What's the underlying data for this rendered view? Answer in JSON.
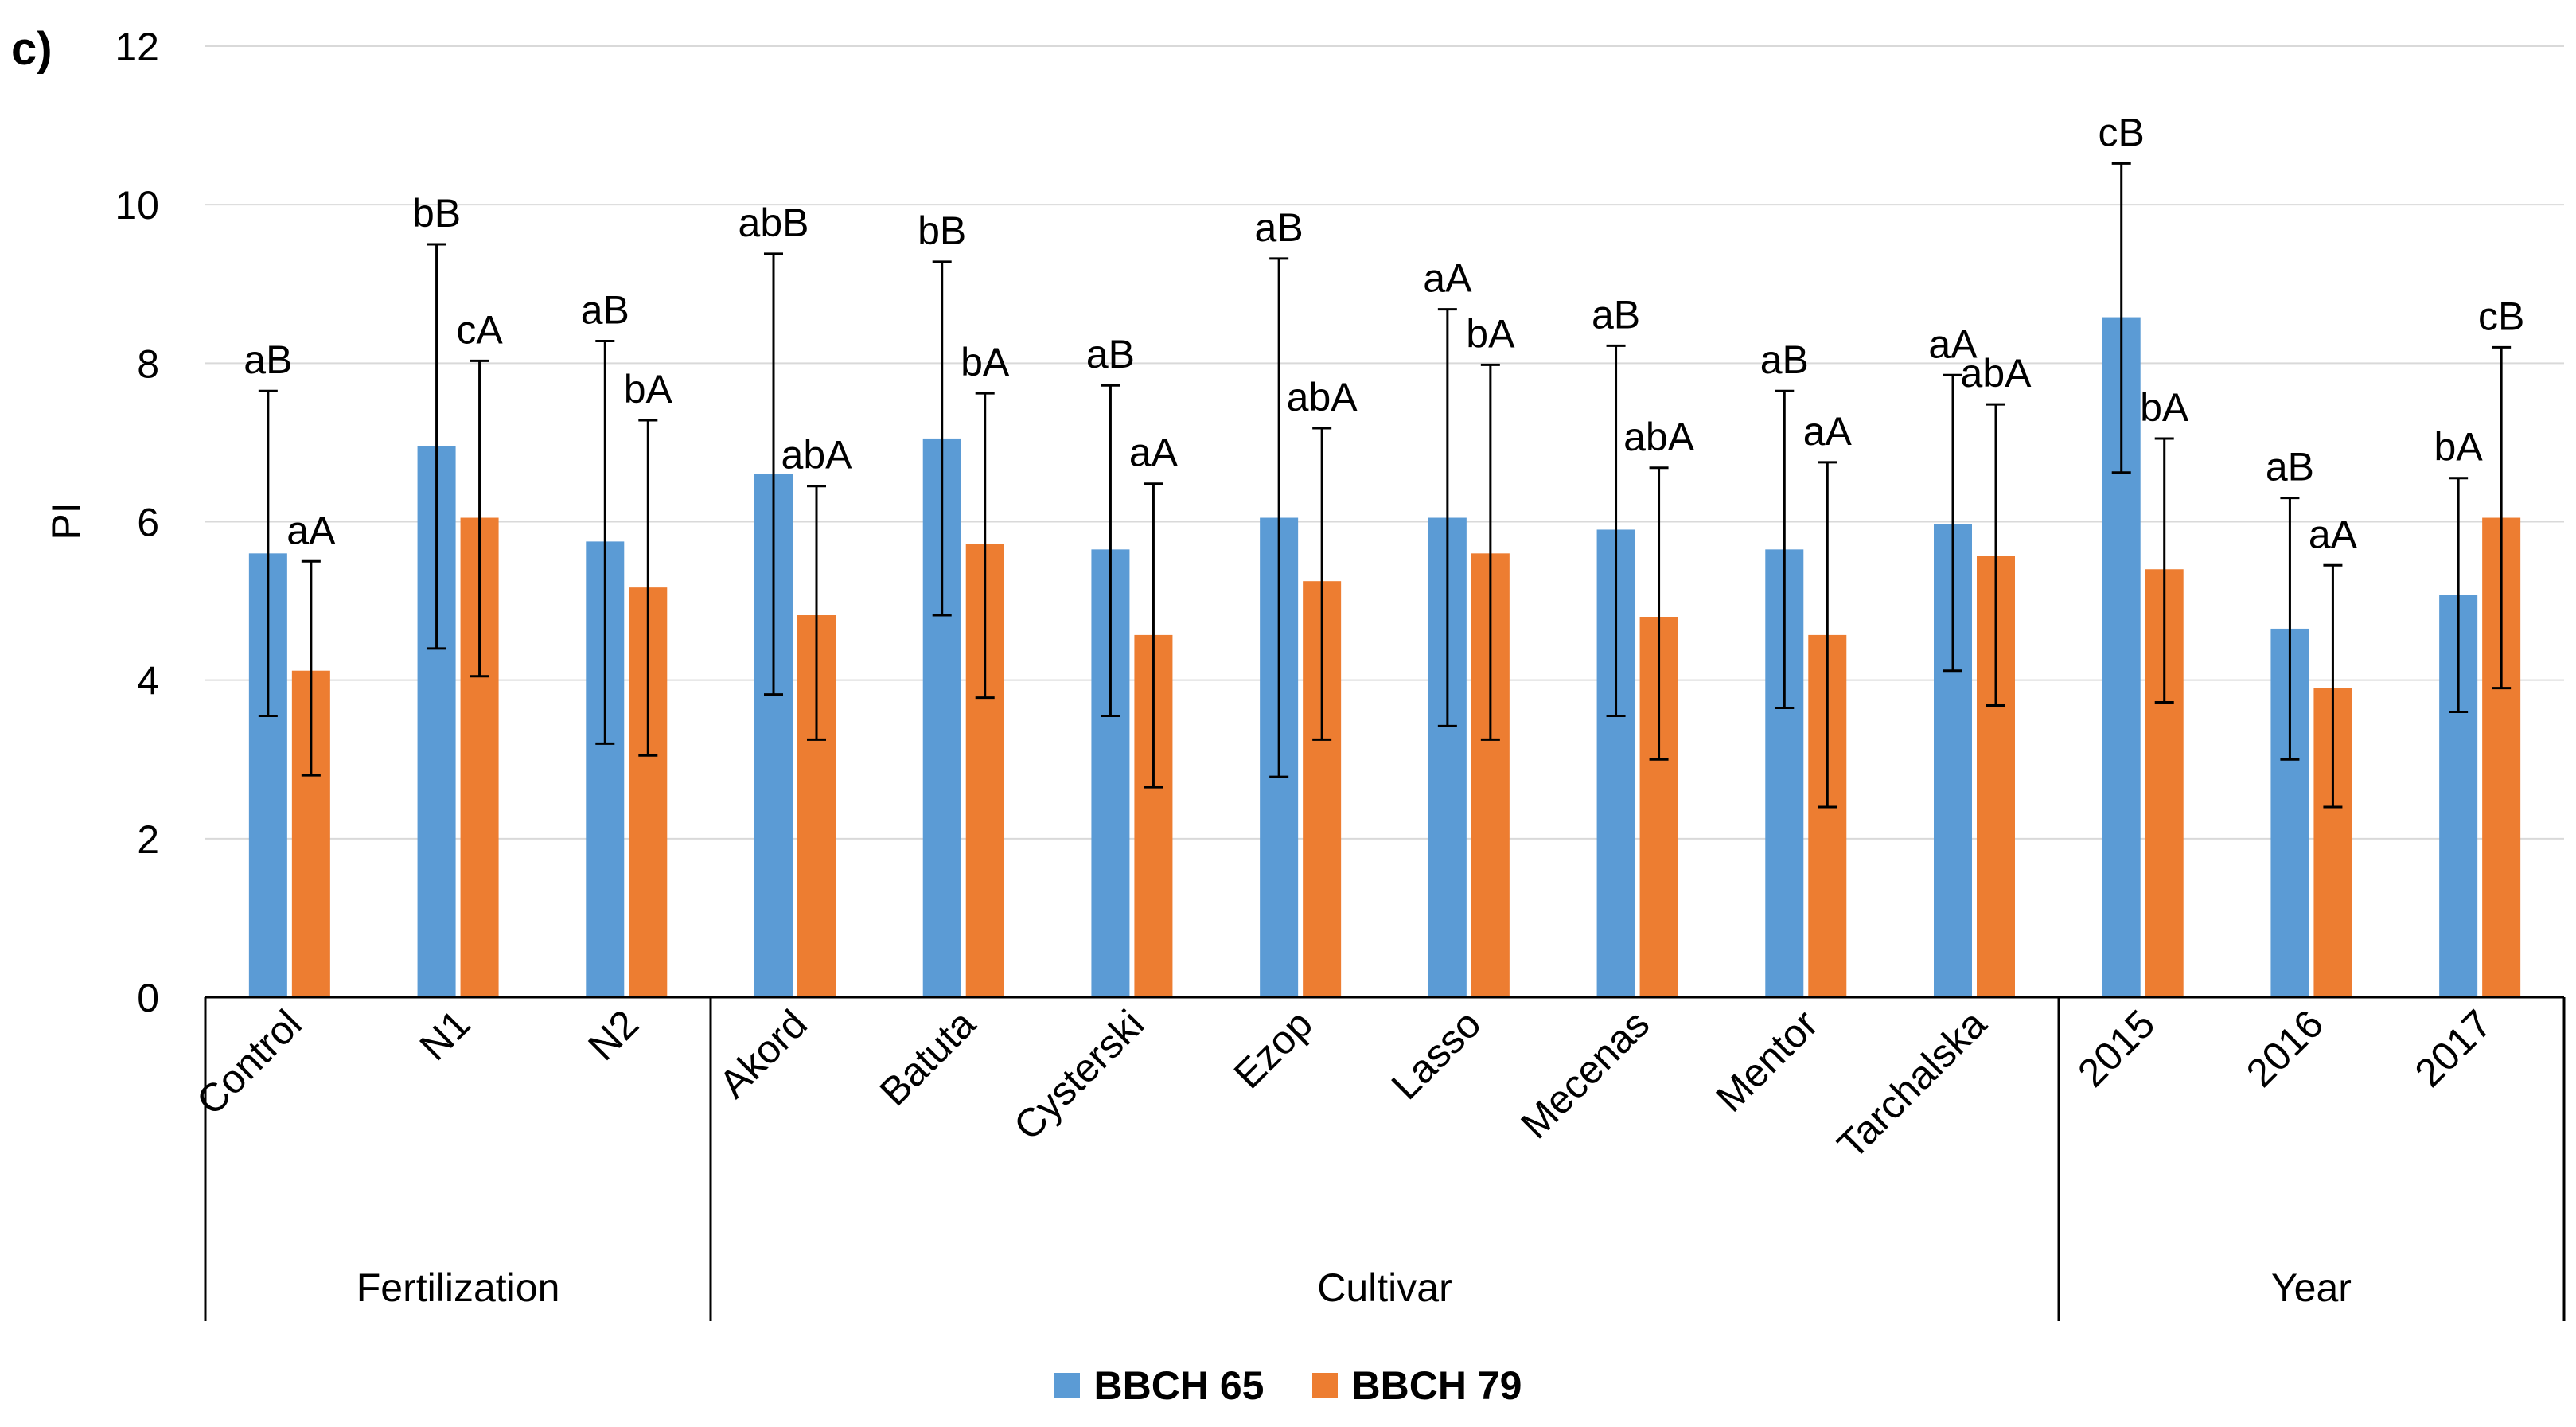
{
  "panel_label": "c)",
  "colors": {
    "bbch65": "#5b9bd5",
    "bbch79": "#ed7d31"
  },
  "legend": [
    {
      "label": "BBCH 65",
      "color": "#5b9bd5"
    },
    {
      "label": "BBCH 79",
      "color": "#ed7d31"
    }
  ],
  "chart_data": {
    "type": "bar",
    "title": "",
    "xlabel": "",
    "ylabel": "PI",
    "ylim": [
      0,
      12
    ],
    "yticks": [
      0,
      2,
      4,
      6,
      8,
      10,
      12
    ],
    "grid": true,
    "categories": [
      "Control",
      "N1",
      "N2",
      "Akord",
      "Batuta",
      "Cysterski",
      "Ezop",
      "Lasso",
      "Mecenas",
      "Mentor",
      "Tarchalska",
      "2015",
      "2016",
      "2017"
    ],
    "groups": [
      {
        "label": "Fertilization",
        "start": 0,
        "end": 2
      },
      {
        "label": "Cultivar",
        "start": 3,
        "end": 10
      },
      {
        "label": "Year",
        "start": 11,
        "end": 13
      }
    ],
    "series": [
      {
        "name": "BBCH 65",
        "values": [
          5.6,
          6.95,
          5.75,
          6.6,
          7.05,
          5.65,
          6.05,
          6.05,
          5.9,
          5.65,
          5.97,
          8.58,
          4.65,
          5.08
        ],
        "err_low": [
          3.55,
          4.4,
          3.2,
          3.82,
          4.82,
          3.55,
          2.78,
          3.42,
          3.55,
          3.65,
          4.12,
          6.62,
          3.0,
          3.6
        ],
        "err_high": [
          7.65,
          9.5,
          8.28,
          9.38,
          9.28,
          7.72,
          9.32,
          8.68,
          8.22,
          7.65,
          7.85,
          10.52,
          6.3,
          6.55
        ],
        "labels": [
          "aB",
          "bB",
          "aB",
          "abB",
          "bB",
          "aB",
          "aB",
          "aA",
          "aB",
          "aB",
          "aA",
          "cB",
          "aB",
          "bA"
        ]
      },
      {
        "name": "BBCH 79",
        "values": [
          4.12,
          6.05,
          5.17,
          4.82,
          5.72,
          4.57,
          5.25,
          5.6,
          4.8,
          4.57,
          5.57,
          5.4,
          3.9,
          6.05
        ],
        "err_low": [
          2.8,
          4.05,
          3.05,
          3.25,
          3.78,
          2.65,
          3.25,
          3.25,
          3.0,
          2.4,
          3.68,
          3.72,
          2.4,
          3.9
        ],
        "err_high": [
          5.5,
          8.03,
          7.28,
          6.45,
          7.62,
          6.48,
          7.18,
          7.98,
          6.68,
          6.75,
          7.48,
          7.05,
          5.45,
          8.2
        ],
        "labels": [
          "aA",
          "cA",
          "bA",
          "abA",
          "bA",
          "aA",
          "abA",
          "bA",
          "abA",
          "aA",
          "abA",
          "bA",
          "aA",
          "cB"
        ]
      }
    ]
  }
}
